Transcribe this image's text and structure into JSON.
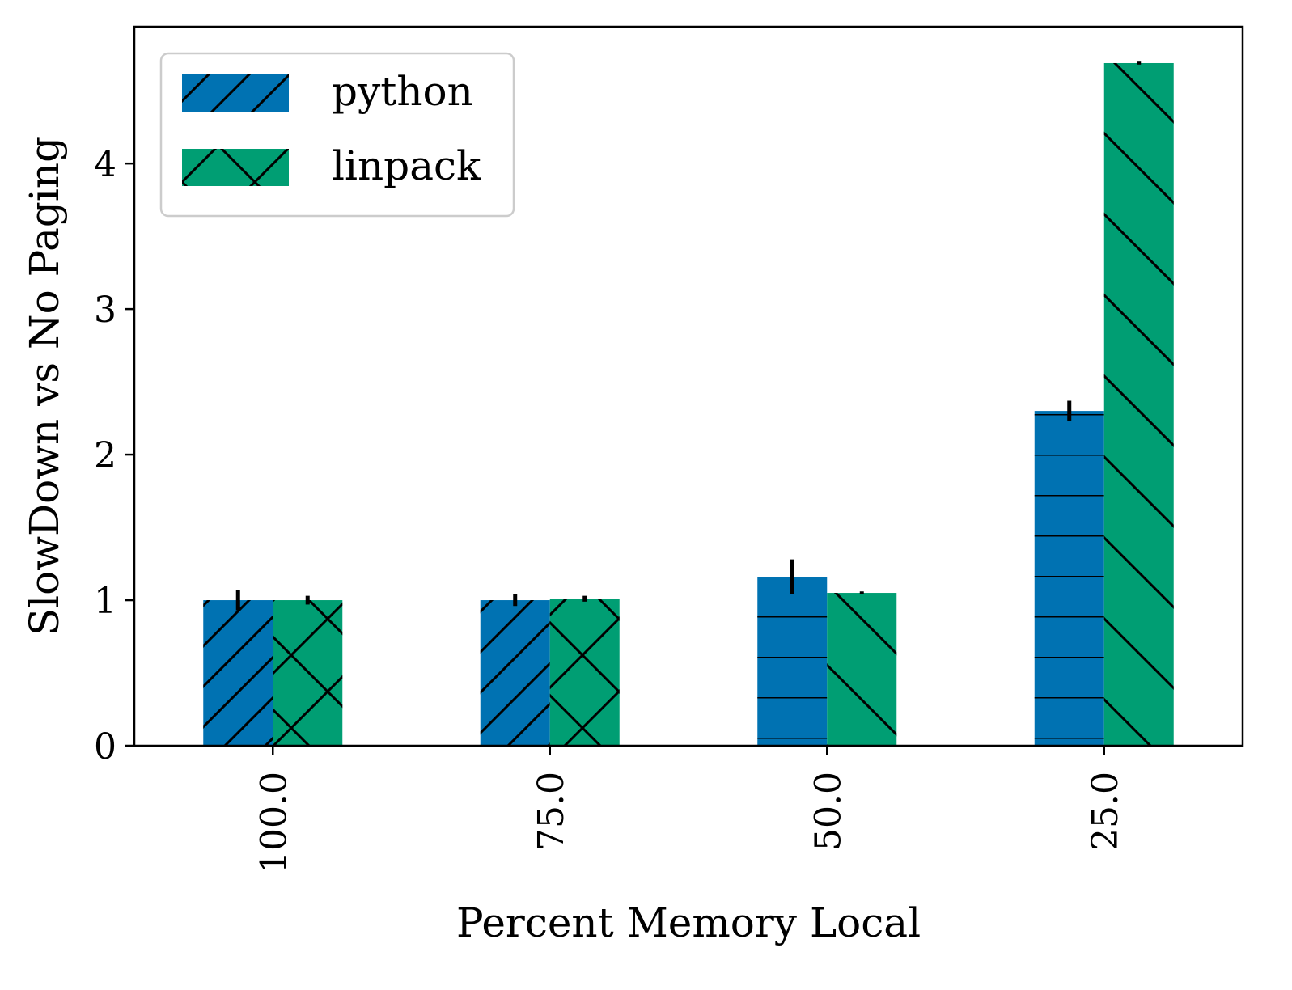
{
  "chart_data": {
    "type": "bar",
    "title": "",
    "xlabel": "Percent Memory Local",
    "ylabel": "SlowDown vs No Paging",
    "categories": [
      "100.0",
      "75.0",
      "50.0",
      "25.0"
    ],
    "ylim": [
      0,
      4.94
    ],
    "yticks": [
      "0",
      "1",
      "2",
      "3",
      "4"
    ],
    "grid": false,
    "legend_position": "upper-left",
    "series": [
      {
        "name": "python",
        "color": "#0072B2",
        "values": [
          1.0,
          1.0,
          1.16,
          2.3
        ],
        "errors": [
          0.07,
          0.04,
          0.12,
          0.07
        ],
        "hatches": [
          "diag-up",
          "diag-up",
          "horizontal",
          "horizontal"
        ]
      },
      {
        "name": "linpack",
        "color": "#009E73",
        "values": [
          1.0,
          1.01,
          1.05,
          4.69
        ],
        "errors": [
          0.03,
          0.02,
          0.01,
          0.01
        ],
        "hatches": [
          "cross",
          "cross",
          "diag-down",
          "diag-down"
        ]
      }
    ]
  }
}
